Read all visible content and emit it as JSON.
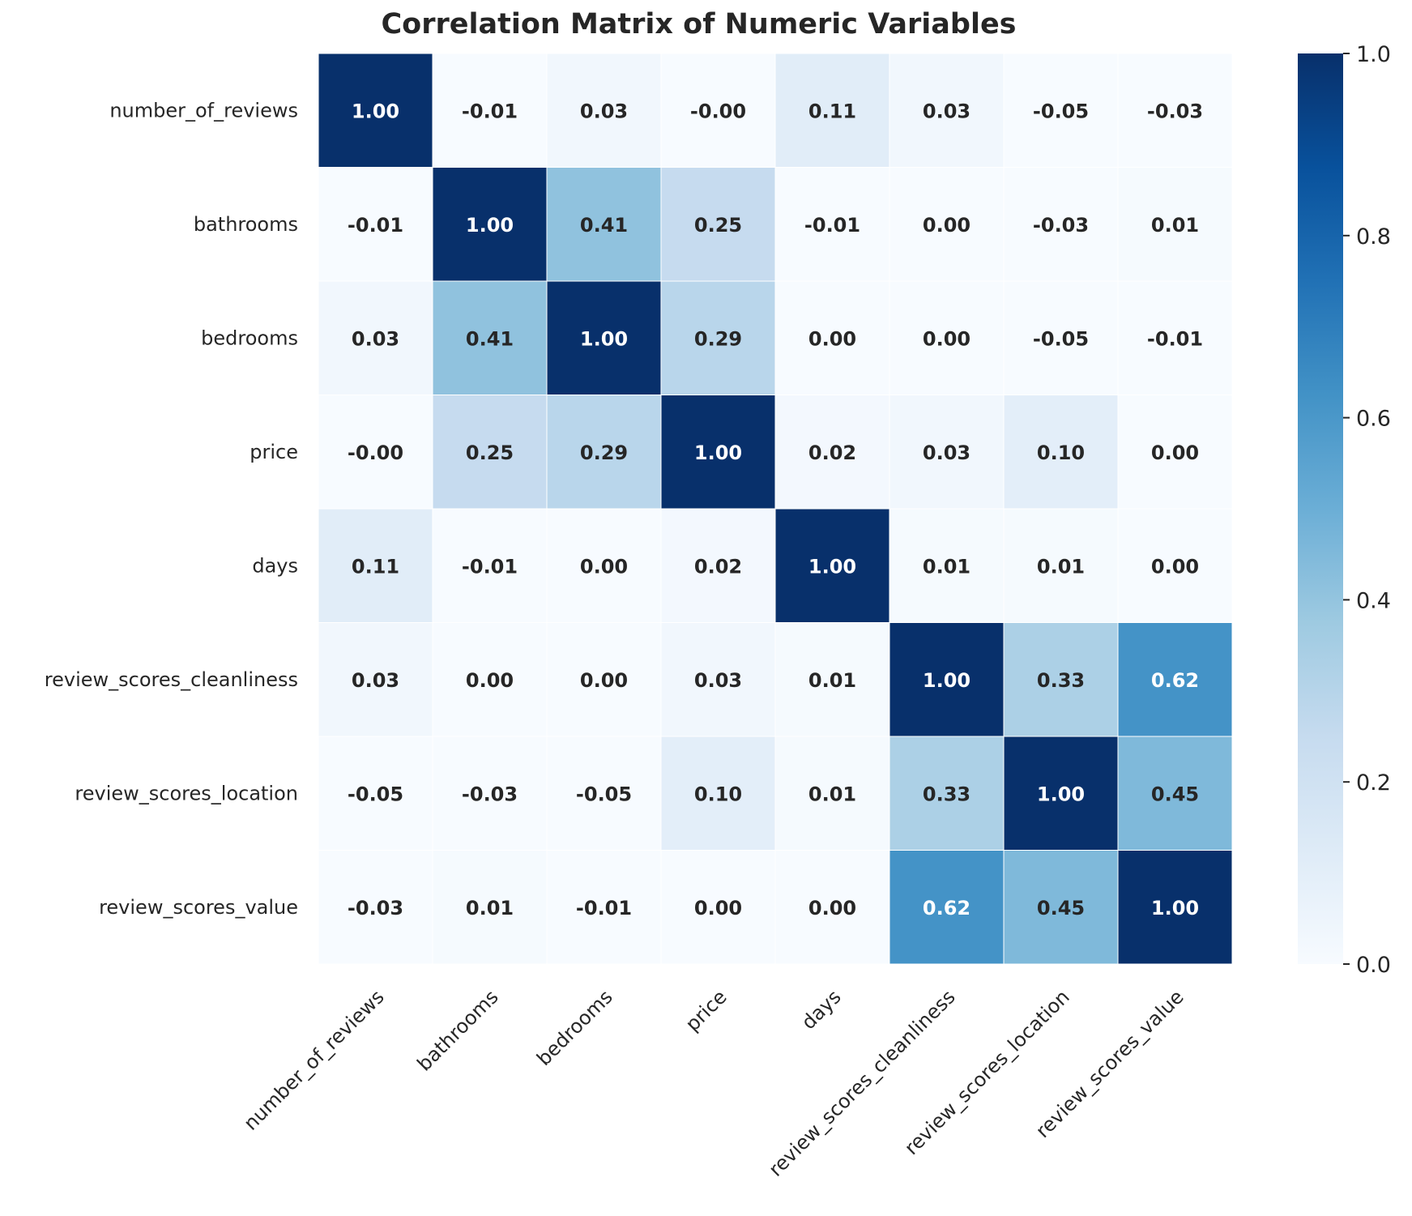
{
  "chart_data": {
    "type": "heatmap",
    "title": "Correlation Matrix of Numeric Variables",
    "variables": [
      "number_of_reviews",
      "bathrooms",
      "bedrooms",
      "price",
      "days",
      "review_scores_cleanliness",
      "review_scores_location",
      "review_scores_value"
    ],
    "matrix": [
      [
        1.0,
        -0.01,
        0.03,
        -0.0,
        0.11,
        0.03,
        -0.05,
        -0.03
      ],
      [
        -0.01,
        1.0,
        0.41,
        0.25,
        -0.01,
        0.0,
        -0.03,
        0.01
      ],
      [
        0.03,
        0.41,
        1.0,
        0.29,
        0.0,
        0.0,
        -0.05,
        -0.01
      ],
      [
        -0.0,
        0.25,
        0.29,
        1.0,
        0.02,
        0.03,
        0.1,
        0.0
      ],
      [
        0.11,
        -0.01,
        0.0,
        0.02,
        1.0,
        0.01,
        0.01,
        0.0
      ],
      [
        0.03,
        0.0,
        0.0,
        0.03,
        0.01,
        1.0,
        0.33,
        0.62
      ],
      [
        -0.05,
        -0.03,
        -0.05,
        0.1,
        0.01,
        0.33,
        1.0,
        0.45
      ],
      [
        -0.03,
        0.01,
        -0.01,
        0.0,
        0.0,
        0.62,
        0.45,
        1.0
      ]
    ],
    "annotations": [
      [
        "1.00",
        "-0.01",
        "0.03",
        "-0.00",
        "0.11",
        "0.03",
        "-0.05",
        "-0.03"
      ],
      [
        "-0.01",
        "1.00",
        "0.41",
        "0.25",
        "-0.01",
        "0.00",
        "-0.03",
        "0.01"
      ],
      [
        "0.03",
        "0.41",
        "1.00",
        "0.29",
        "0.00",
        "0.00",
        "-0.05",
        "-0.01"
      ],
      [
        "-0.00",
        "0.25",
        "0.29",
        "1.00",
        "0.02",
        "0.03",
        "0.10",
        "0.00"
      ],
      [
        "0.11",
        "-0.01",
        "0.00",
        "0.02",
        "1.00",
        "0.01",
        "0.01",
        "0.00"
      ],
      [
        "0.03",
        "0.00",
        "0.00",
        "0.03",
        "0.01",
        "1.00",
        "0.33",
        "0.62"
      ],
      [
        "-0.05",
        "-0.03",
        "-0.05",
        "0.10",
        "0.01",
        "0.33",
        "1.00",
        "0.45"
      ],
      [
        "-0.03",
        "0.01",
        "-0.01",
        "0.00",
        "0.00",
        "0.62",
        "0.45",
        "1.00"
      ]
    ],
    "colormap": "Blues",
    "vmin": 0.0,
    "vmax": 1.0,
    "colorbar_ticks": [
      "0.0",
      "0.2",
      "0.4",
      "0.6",
      "0.8",
      "1.0"
    ],
    "colorbar_tick_values": [
      0.0,
      0.2,
      0.4,
      0.6,
      0.8,
      1.0
    ],
    "x_tick_rotation_deg": 45,
    "grid": false,
    "cell_borders": "white"
  }
}
